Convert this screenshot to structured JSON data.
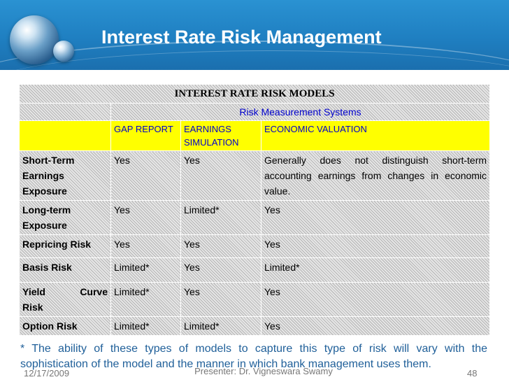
{
  "slide": {
    "title": "Interest Rate Risk Management"
  },
  "table": {
    "title": "INTEREST RATE RISK MODELS",
    "subtitle": "Risk Measurement Systems",
    "columns": [
      "GAP REPORT",
      "EARNINGS SIMULATION",
      "ECONOMIC VALUATION"
    ],
    "rows": [
      {
        "label": "Short-Term Earnings Exposure",
        "gap": "Yes",
        "earnings": "Yes",
        "economic": "Generally does not distinguish short-term accounting earnings from changes in economic value."
      },
      {
        "label": "Long-term Exposure",
        "gap": "Yes",
        "earnings": "Limited*",
        "economic": "Yes"
      },
      {
        "label": "Repricing Risk",
        "gap": "Yes",
        "earnings": "Yes",
        "economic": "Yes"
      },
      {
        "label": "Basis Risk",
        "gap": "Limited*",
        "earnings": "Yes",
        "economic": "Limited*"
      },
      {
        "label_part1": "Yield",
        "label_part2": "Curve",
        "label_part3": "Risk",
        "gap": "Limited*",
        "earnings": "Yes",
        "economic": "Yes"
      },
      {
        "label": "Option Risk",
        "gap": "Limited*",
        "earnings": "Limited*",
        "economic": "Yes"
      }
    ]
  },
  "footnote": "* The ability of these types of models to capture this type of risk will vary with the sophistication of the model and the manner in which bank management uses them.",
  "footer": {
    "date": "12/17/2009",
    "presenter": "Presenter: Dr. Vigneswara Swamy",
    "page": "48"
  }
}
